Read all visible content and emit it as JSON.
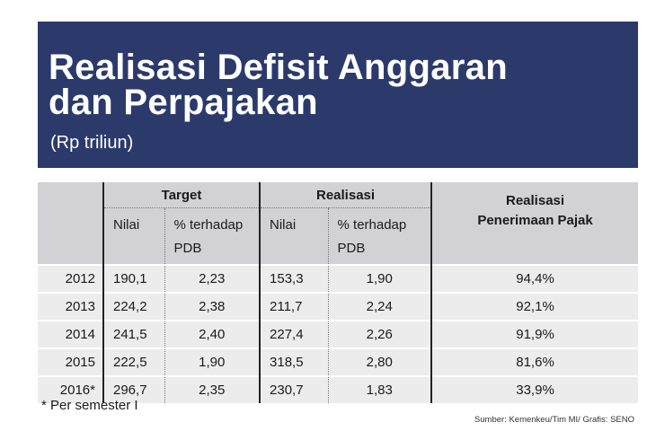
{
  "banner": {
    "title_line1": "Realisasi Defisit Anggaran",
    "title_line2": "dan Perpajakan",
    "subtitle": "(Rp triliun)"
  },
  "table": {
    "group_headers": {
      "target": "Target",
      "realisasi": "Realisasi",
      "pajak_line1": "Realisasi",
      "pajak_line2": "Penerimaan Pajak"
    },
    "sub_headers": {
      "nilai": "Nilai",
      "persen_line1": "% terhadap",
      "persen_line2": "PDB"
    },
    "rows": [
      {
        "year": "2012",
        "target_nilai": "190,1",
        "target_pdb": "2,23",
        "real_nilai": "153,3",
        "real_pdb": "1,90",
        "pajak": "94,4%"
      },
      {
        "year": "2013",
        "target_nilai": "224,2",
        "target_pdb": "2,38",
        "real_nilai": "211,7",
        "real_pdb": "2,24",
        "pajak": "92,1%"
      },
      {
        "year": "2014",
        "target_nilai": "241,5",
        "target_pdb": "2,40",
        "real_nilai": "227,4",
        "real_pdb": "2,26",
        "pajak": "91,9%"
      },
      {
        "year": "2015",
        "target_nilai": "222,5",
        "target_pdb": "1,90",
        "real_nilai": "318,5",
        "real_pdb": "2,80",
        "pajak": "81,6%"
      },
      {
        "year": "2016*",
        "target_nilai": "296,7",
        "target_pdb": "2,35",
        "real_nilai": "230,7",
        "real_pdb": "1,83",
        "pajak": "33,9%"
      }
    ]
  },
  "footnote": "* Per semester I",
  "source": "Sumber: Kemenkeu/Tim MI/ Grafis: SENO",
  "colors": {
    "banner_bg": "#2b3a6b",
    "header_bg": "#d2d2d4",
    "row_bg": "#ececed"
  }
}
